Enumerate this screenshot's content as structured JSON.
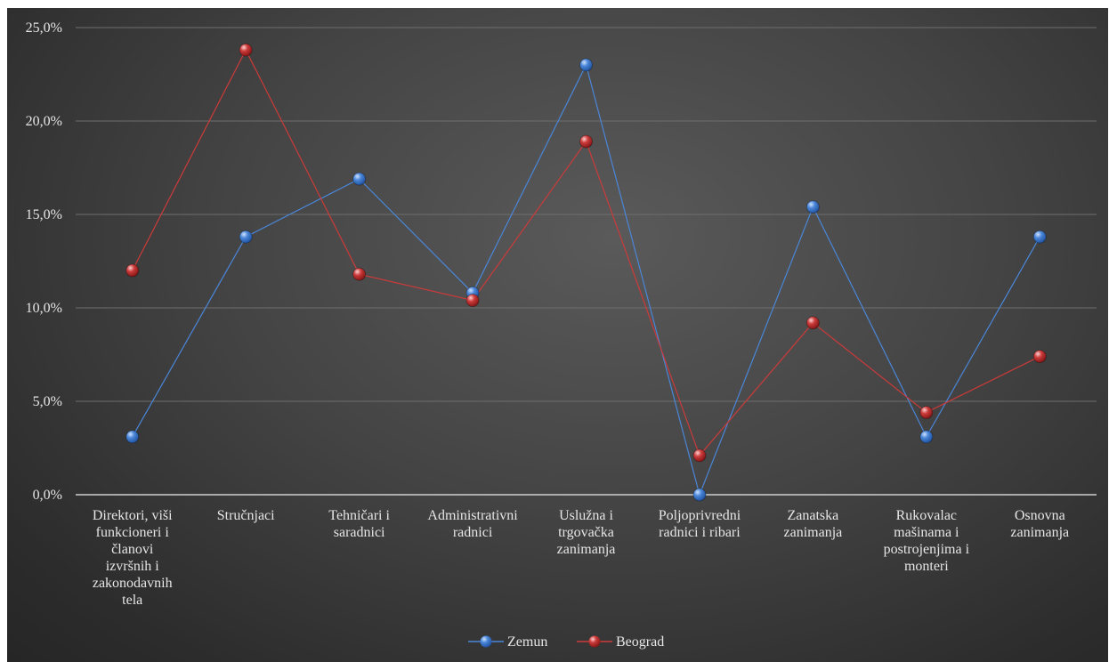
{
  "chart_data": {
    "type": "line",
    "categories": [
      [
        "Direktori, viši",
        "funkcioneri i",
        "članovi",
        "izvršnih i",
        "zakonodavnih",
        "tela"
      ],
      [
        "Stručnjaci"
      ],
      [
        "Tehničari i",
        "saradnici"
      ],
      [
        "Administrativni",
        "radnici"
      ],
      [
        "Uslužna i",
        "trgovačka",
        "zanimanja"
      ],
      [
        "Poljoprivredni",
        "radnici i ribari"
      ],
      [
        "Zanatska",
        "zanimanja"
      ],
      [
        "Rukovalac",
        "mašinama i",
        "postrojenjima i",
        "monteri"
      ],
      [
        "Osnovna",
        "zanimanja"
      ]
    ],
    "series": [
      {
        "name": "Zemun",
        "color": "#4a86d8",
        "values": [
          3.1,
          13.8,
          16.9,
          10.8,
          23.0,
          0.0,
          15.4,
          3.1,
          13.8
        ]
      },
      {
        "name": "Beograd",
        "color": "#cc3a3a",
        "values": [
          12.0,
          23.8,
          11.8,
          10.4,
          18.9,
          2.1,
          9.2,
          4.4,
          7.4
        ]
      }
    ],
    "yticks": [
      "0,0%",
      "5,0%",
      "10,0%",
      "15,0%",
      "20,0%",
      "25,0%"
    ],
    "ylim": [
      0,
      25
    ],
    "grid": true,
    "legend": "bottom-center"
  }
}
